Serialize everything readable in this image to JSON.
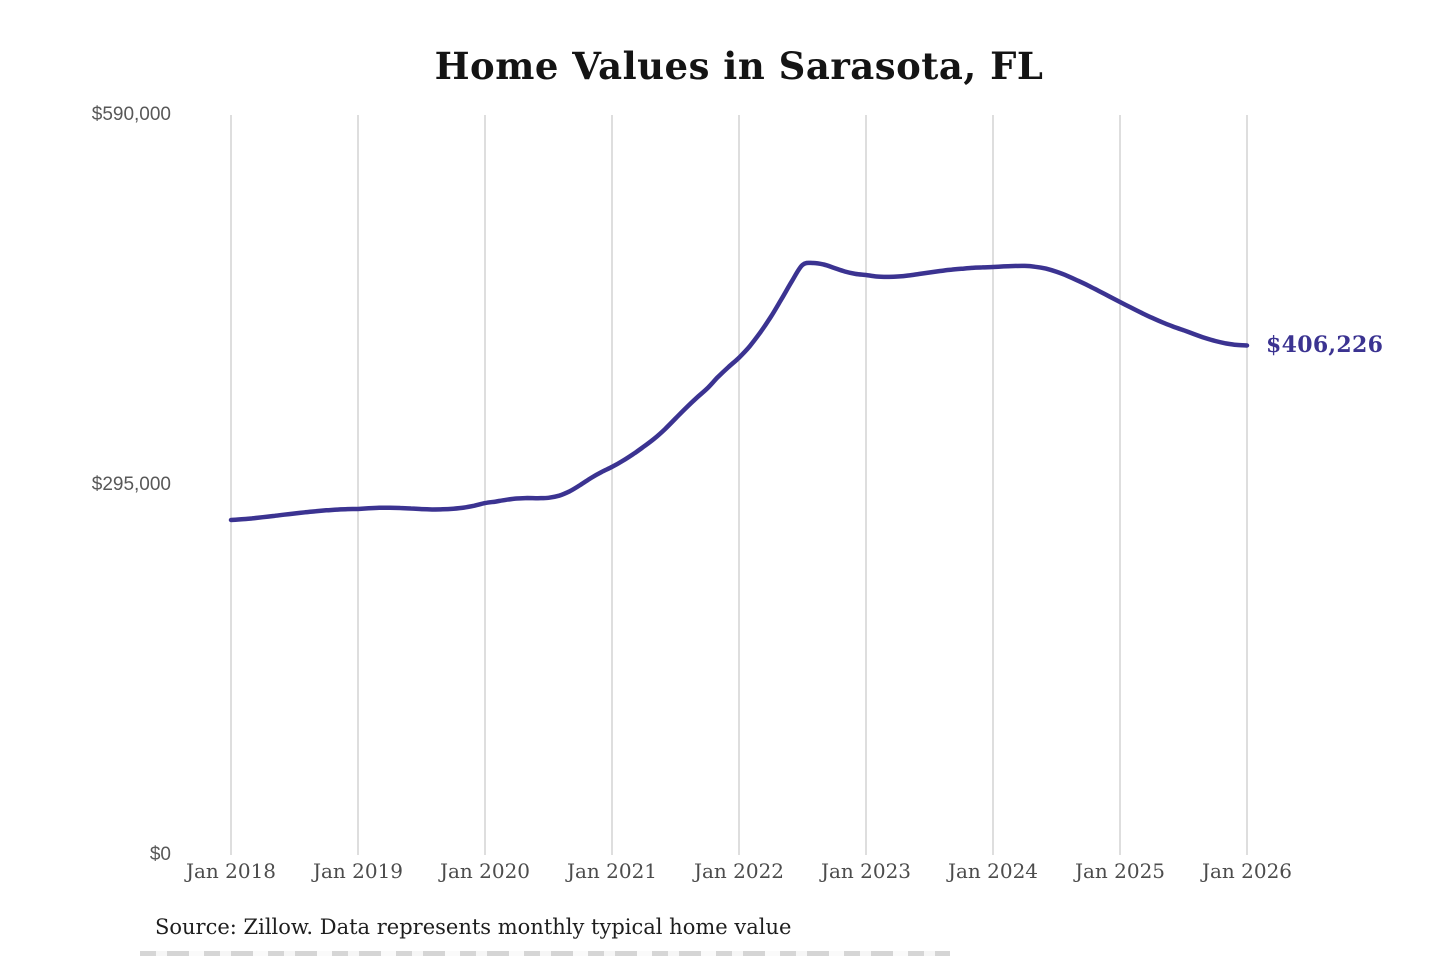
{
  "title": "Home Values in Sarasota, FL",
  "source_note": "Source: Zillow. Data represents monthly typical home value",
  "colors": {
    "line": "#3b3391",
    "value_label": "#3b3391",
    "gridline": "#c9c9c9",
    "y_tick_text": "#585858",
    "x_tick_text": "#4c4c4c",
    "title_text": "#141414",
    "background": "#ffffff"
  },
  "chart_data": {
    "type": "line",
    "title": "Home Values in Sarasota, FL",
    "xlabel": "",
    "ylabel": "",
    "x_start_month": "2018-01",
    "x_frequency": "monthly",
    "x_end_month": "2026-01",
    "x_tick_labels": [
      "Jan 2018",
      "Jan 2019",
      "Jan 2020",
      "Jan 2021",
      "Jan 2022",
      "Jan 2023",
      "Jan 2024",
      "Jan 2025",
      "Jan 2026"
    ],
    "y_tick_labels": [
      "$590,000",
      "$295,000",
      "$0"
    ],
    "y_ticks": [
      590000,
      295000,
      0
    ],
    "ylim": [
      0,
      590000
    ],
    "grid": "vertical-only",
    "legend": "none",
    "line_color": "#3b3391",
    "last_value": 406226,
    "last_value_label": "$406,226",
    "values": [
      267100,
      267700,
      268400,
      269300,
      270300,
      271300,
      272300,
      273200,
      274100,
      274800,
      275400,
      275800,
      275900,
      276400,
      276800,
      276900,
      276700,
      276300,
      275800,
      275500,
      275600,
      276100,
      277000,
      278500,
      280600,
      281800,
      283200,
      284200,
      284600,
      284500,
      284800,
      286500,
      290000,
      295000,
      300500,
      305300,
      309400,
      314200,
      319600,
      325600,
      332000,
      339500,
      348000,
      356500,
      364500,
      372000,
      381000,
      389000,
      396500,
      405500,
      416500,
      429000,
      443000,
      457500,
      470500,
      472000,
      470800,
      468000,
      465200,
      463300,
      462400,
      461200,
      460900,
      461200,
      462000,
      463200,
      464400,
      465600,
      466600,
      467400,
      468100,
      468500,
      468800,
      469300,
      469600,
      469700,
      469000,
      467500,
      465000,
      461800,
      458000,
      454000,
      449700,
      445300,
      440900,
      436600,
      432400,
      428400,
      424700,
      421400,
      418400,
      415300,
      412300,
      409800,
      407900,
      406700,
      406226
    ]
  }
}
